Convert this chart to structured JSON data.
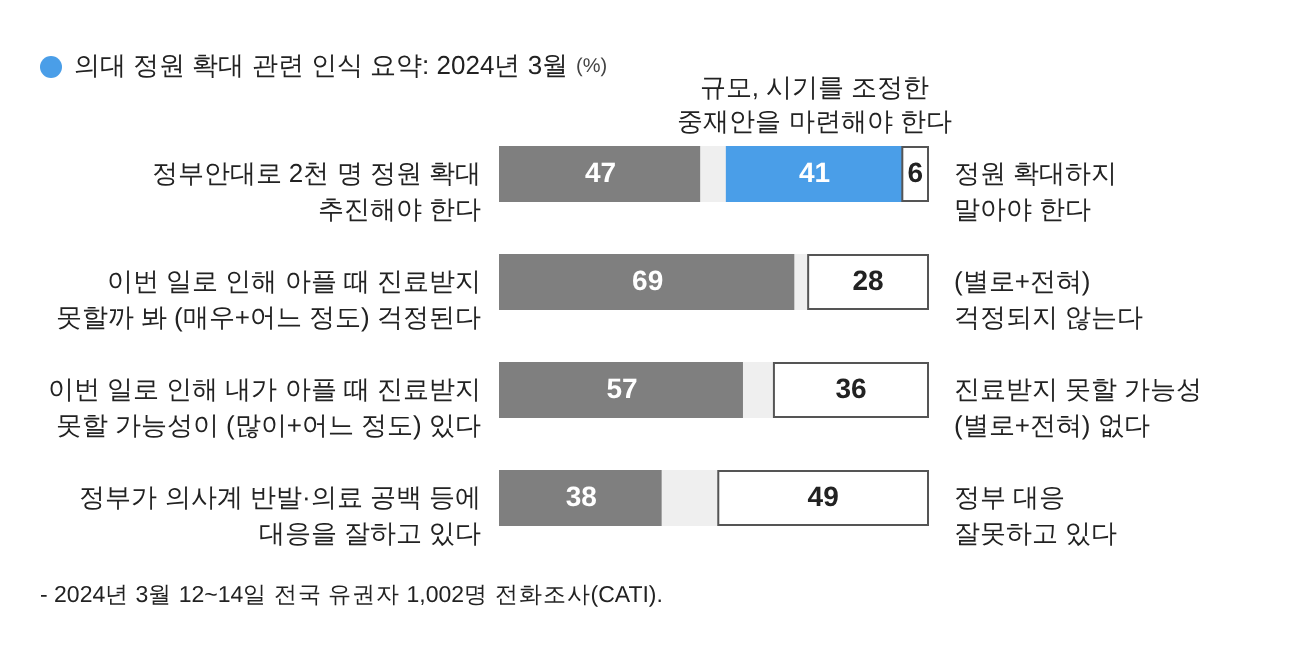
{
  "chart_data": {
    "type": "bar",
    "orientation": "horizontal",
    "stacked": true,
    "title": "의대 정원 확대 관련 인식 요약: 2024년 3월",
    "subtitle": "(%)",
    "categories": [
      "정부안대로 2천 명 정원 확대\n추진해야 한다",
      "이번 일로 인해 아플 때 진료받지\n못할까 봐 (매우+어느 정도) 걱정된다",
      "이번 일로 인해 내가 아플 때 진료받지\n못할 가능성이 (많이+어느 정도) 있다",
      "정부가 의사계 반발·의료 공백 등에\n대응을 잘하고 있다"
    ],
    "series": [
      {
        "color": "#7f7f7f",
        "values": [
          47,
          69,
          57,
          38
        ],
        "value_labels": [
          "47",
          "69",
          "57",
          "38"
        ]
      },
      {
        "color": "#efefef",
        "values": [
          6,
          3,
          7,
          13
        ],
        "value_labels": [
          null,
          null,
          null,
          null
        ]
      },
      {
        "color": "#4a9ee8",
        "values": [
          41,
          null,
          null,
          null
        ],
        "value_labels": [
          "41",
          null,
          null,
          null
        ]
      },
      {
        "color": "#ffffff",
        "values": [
          6,
          28,
          36,
          49
        ],
        "value_labels": [
          "6",
          "28",
          "36",
          "49"
        ]
      }
    ],
    "annotations": [
      "규모, 시기를 조정한\n중재안을 마련해야 한다",
      "정원 확대하지\n말아야 한다",
      "(별로+전혀)\n걱정되지 않는다",
      "진료받지 못할 가능성\n(별로+전혀) 없다",
      "정부 대응\n잘못하고 있다",
      "- 2024년 3월 12~14일 전국 유권자 1,002명 전화조사(CATI)."
    ]
  }
}
